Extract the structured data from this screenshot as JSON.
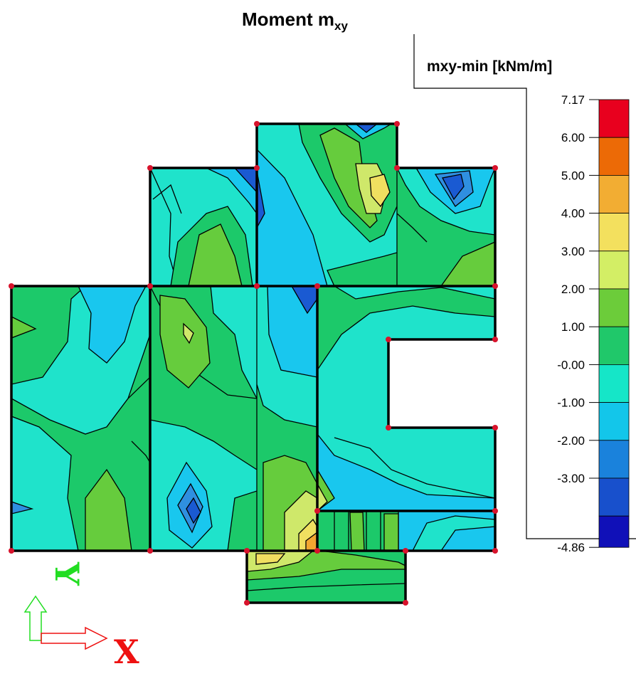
{
  "title": {
    "main": "Moment m",
    "sub": "xy"
  },
  "legend": {
    "title": "mxy-min [kNm/m]",
    "ticks": [
      "7.17",
      "6.00",
      "5.00",
      "4.00",
      "3.00",
      "2.00",
      "1.00",
      "-0.00",
      "-1.00",
      "-2.00",
      "-3.00",
      "-4.86"
    ],
    "colors": [
      "#e8001e",
      "#ec6a06",
      "#f2ad33",
      "#f3e05e",
      "#d3ee65",
      "#6ccc3a",
      "#20c86a",
      "#15e6c8",
      "#13c6ea",
      "#1a82dc",
      "#1850cc",
      "#1010b8"
    ]
  },
  "axes": {
    "x_label": "X",
    "y_label": "Y",
    "x_color": "#ee1111",
    "y_color": "#22dd22"
  },
  "palette": {
    "dark_blue": "#1a5ad2",
    "blue": "#2f8fe0",
    "light_blue": "#19c7ee",
    "cyan": "#1fe3cb",
    "green": "#1cc96a",
    "lime": "#66cc3d",
    "yellow_green": "#cfe86a",
    "yellow": "#f0df60",
    "orange": "#f2a630",
    "node": "#d8132c",
    "edge": "#000000"
  }
}
